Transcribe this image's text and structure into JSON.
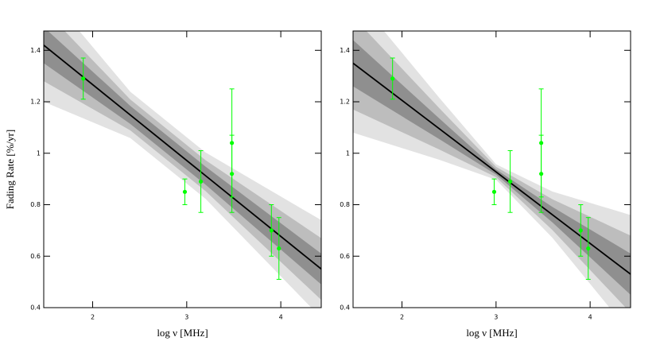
{
  "chart_data": [
    {
      "type": "scatter",
      "ylabel": "Fading Rate [%/yr]",
      "xlabel": "log ν [MHz]",
      "x": [
        1.9,
        2.98,
        3.15,
        3.48,
        3.48,
        3.9,
        3.98
      ],
      "values": [
        1.29,
        0.85,
        0.89,
        0.92,
        1.04,
        0.7,
        0.63
      ],
      "errors": [
        0.08,
        0.05,
        0.12,
        0.15,
        0.21,
        0.1,
        0.12
      ],
      "color": "#00ff00",
      "fit": {
        "x": [
          1.48,
          4.43
        ],
        "values": [
          1.42,
          0.55
        ],
        "color": "#000000"
      },
      "bands": [
        {
          "x": [
            1.48,
            2.4,
            3.2,
            4.43
          ],
          "lower": [
            1.2,
            1.059,
            0.823,
            0.36
          ],
          "upper": [
            1.64,
            1.239,
            1.003,
            0.74
          ],
          "color": "#e2e2e2"
        },
        {
          "x": [
            1.48,
            2.4,
            3.2,
            4.43
          ],
          "lower": [
            1.28,
            1.089,
            0.853,
            0.43
          ],
          "upper": [
            1.56,
            1.209,
            0.973,
            0.67
          ],
          "color": "#bdbdbd"
        },
        {
          "x": [
            1.48,
            2.4,
            3.2,
            4.43
          ],
          "lower": [
            1.35,
            1.114,
            0.878,
            0.49
          ],
          "upper": [
            1.49,
            1.184,
            0.948,
            0.61
          ],
          "color": "#8f8f8f"
        }
      ],
      "xlim": [
        1.48,
        4.43
      ],
      "ylim": [
        0.4,
        1.475
      ],
      "xticks": [
        2,
        3,
        4
      ],
      "yticks": [
        0.4,
        0.6,
        0.8,
        1,
        1.2,
        1.4
      ]
    },
    {
      "type": "scatter",
      "xlabel": "log ν [MHz]",
      "x": [
        1.9,
        2.98,
        3.15,
        3.48,
        3.48,
        3.9,
        3.98
      ],
      "values": [
        1.29,
        0.85,
        0.89,
        0.92,
        1.04,
        0.7,
        0.63
      ],
      "errors": [
        0.08,
        0.05,
        0.12,
        0.15,
        0.21,
        0.1,
        0.12
      ],
      "color": "#00ff00",
      "fit": {
        "x": [
          1.48,
          4.43
        ],
        "values": [
          1.35,
          0.53
        ],
        "color": "#000000"
      },
      "bands": [
        {
          "x": [
            1.48,
            2.4,
            3.0,
            3.6,
            4.43
          ],
          "lower": [
            1.08,
            0.974,
            0.897,
            0.671,
            0.3
          ],
          "upper": [
            1.62,
            1.214,
            0.957,
            0.851,
            0.76
          ],
          "color": "#e2e2e2"
        },
        {
          "x": [
            1.48,
            2.4,
            3.0,
            3.6,
            4.43
          ],
          "lower": [
            1.17,
            1.014,
            0.907,
            0.701,
            0.38
          ],
          "upper": [
            1.53,
            1.174,
            0.947,
            0.821,
            0.68
          ],
          "color": "#bdbdbd"
        },
        {
          "x": [
            1.48,
            2.4,
            3.0,
            3.6,
            4.43
          ],
          "lower": [
            1.26,
            1.054,
            0.917,
            0.731,
            0.45
          ],
          "upper": [
            1.44,
            1.134,
            0.937,
            0.791,
            0.61
          ],
          "color": "#8f8f8f"
        }
      ],
      "xlim": [
        1.48,
        4.43
      ],
      "ylim": [
        0.4,
        1.475
      ],
      "xticks": [
        2,
        3,
        4
      ],
      "yticks": [
        0.4,
        0.6,
        0.8,
        1,
        1.2,
        1.4
      ]
    }
  ]
}
